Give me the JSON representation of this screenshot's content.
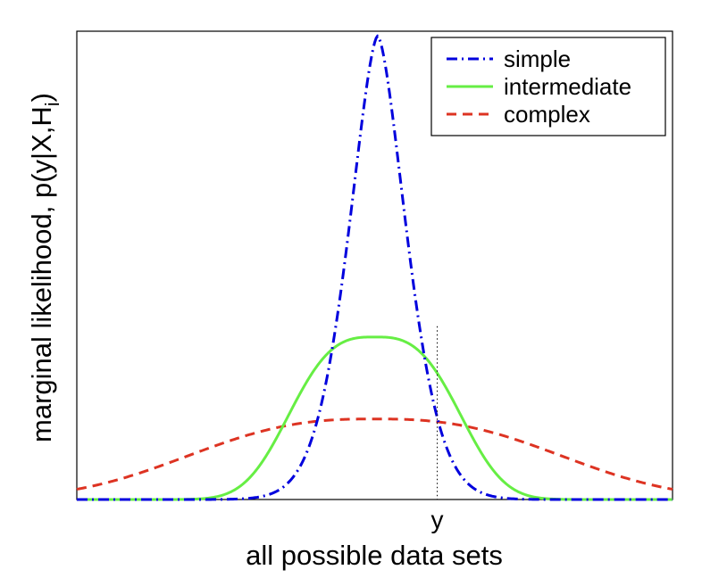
{
  "chart_data": {
    "type": "line",
    "title": "",
    "xlabel": "all possible data sets",
    "ylabel": "marginal likelihood, p(y|X,H",
    "ylabel_subscript": "i",
    "ylabel_close": ")",
    "x_tick_labels": [
      {
        "x": 0.605,
        "label": "y"
      }
    ],
    "xlim": [
      0,
      1
    ],
    "ylim": [
      0,
      1
    ],
    "grid": false,
    "legend_position": "top-right",
    "marker_line": {
      "x": 0.605,
      "y_top": 0.37,
      "style": "dotted"
    },
    "series": [
      {
        "name": "simple",
        "style": "dash-dot",
        "color": "#0000dd",
        "shape": {
          "kind": "flat-gaussian",
          "center": 0.505,
          "sigma": 0.046,
          "power": 1.6,
          "peak": 0.99
        }
      },
      {
        "name": "intermediate",
        "style": "solid",
        "color": "#66ee44",
        "shape": {
          "kind": "flat-gaussian",
          "center": 0.5,
          "sigma": 0.132,
          "power": 3.0,
          "peak": 0.347
        }
      },
      {
        "name": "complex",
        "style": "dashed",
        "color": "#dd3322",
        "shape": {
          "kind": "flat-gaussian",
          "center": 0.5,
          "sigma": 0.29,
          "power": 2.6,
          "peak": 0.172
        }
      }
    ]
  }
}
